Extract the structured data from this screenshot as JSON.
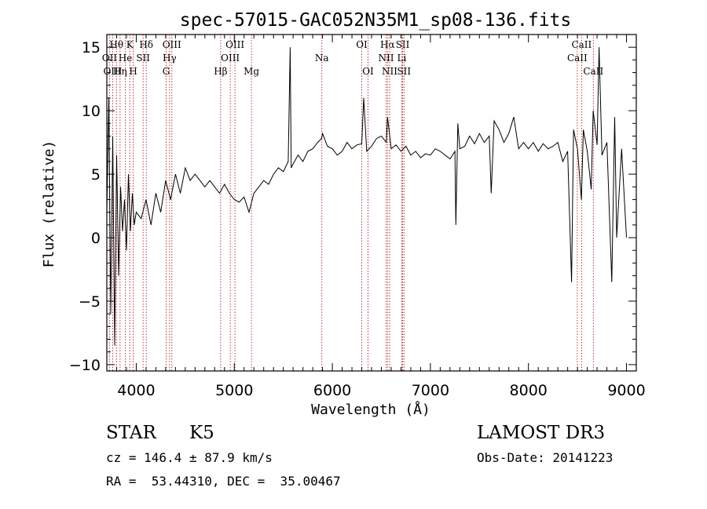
{
  "chart_data": {
    "type": "line",
    "title": "spec-57015-GAC052N35M1_sp08-136.fits",
    "xlabel": "Wavelength (Å)",
    "ylabel": "Flux (relative)",
    "xlim": [
      3700,
      9100
    ],
    "ylim": [
      -10.5,
      16
    ],
    "xticks": [
      4000,
      5000,
      6000,
      7000,
      8000,
      9000
    ],
    "xtick_labels": [
      "4000",
      "5000",
      "6000",
      "7000",
      "8000",
      "9000"
    ],
    "yticks": [
      -10,
      -5,
      0,
      5,
      10,
      15
    ],
    "ytick_labels": [
      "−10",
      "−5",
      "0",
      "5",
      "10",
      "15"
    ],
    "grid": false,
    "series": [
      {
        "name": "flux",
        "x": [
          3700,
          3720,
          3740,
          3760,
          3780,
          3800,
          3820,
          3840,
          3860,
          3880,
          3900,
          3920,
          3940,
          3960,
          3980,
          4000,
          4050,
          4100,
          4150,
          4200,
          4250,
          4300,
          4350,
          4400,
          4450,
          4500,
          4550,
          4600,
          4650,
          4700,
          4750,
          4800,
          4850,
          4900,
          4950,
          5000,
          5050,
          5100,
          5150,
          5200,
          5250,
          5300,
          5350,
          5400,
          5450,
          5500,
          5550,
          5570,
          5580,
          5600,
          5650,
          5700,
          5750,
          5800,
          5850,
          5890,
          5900,
          5950,
          6000,
          6050,
          6100,
          6150,
          6200,
          6250,
          6300,
          6320,
          6350,
          6400,
          6450,
          6500,
          6550,
          6563,
          6600,
          6650,
          6700,
          6750,
          6800,
          6850,
          6900,
          6950,
          7000,
          7050,
          7100,
          7150,
          7200,
          7250,
          7260,
          7280,
          7300,
          7350,
          7400,
          7450,
          7500,
          7550,
          7600,
          7620,
          7650,
          7700,
          7750,
          7800,
          7850,
          7900,
          7950,
          8000,
          8050,
          8100,
          8150,
          8200,
          8250,
          8300,
          8350,
          8400,
          8440,
          8460,
          8500,
          8540,
          8560,
          8600,
          8640,
          8660,
          8700,
          8720,
          8750,
          8800,
          8850,
          8880,
          8900,
          8950,
          9000
        ],
        "y": [
          2,
          11,
          -6,
          8,
          -8.5,
          6.5,
          -3,
          4,
          0.5,
          3,
          -1,
          5,
          0.5,
          3.5,
          1,
          2,
          1.5,
          3,
          1,
          3.5,
          2,
          4.5,
          3,
          5,
          3.5,
          5.5,
          4.5,
          5,
          4.5,
          4,
          4.5,
          4,
          3.5,
          4.2,
          3.5,
          3,
          2.8,
          3.2,
          2,
          3.5,
          4,
          4.5,
          4.2,
          5,
          5.5,
          5.2,
          6,
          15,
          5.5,
          5.8,
          6.5,
          6,
          6.8,
          7,
          7.5,
          7.8,
          8.2,
          7.2,
          7,
          6.5,
          6.8,
          7.5,
          7,
          7.3,
          7.4,
          11,
          6.8,
          7.2,
          7.8,
          8,
          7.5,
          9.5,
          7,
          7.3,
          6.8,
          7.2,
          6.5,
          6.8,
          6.3,
          6.6,
          6.5,
          7,
          6.8,
          6.5,
          6.2,
          6.8,
          1,
          9,
          7,
          7.2,
          8,
          7.4,
          8.2,
          7.5,
          8,
          3.5,
          9.2,
          8.5,
          7.5,
          8.2,
          9.5,
          7,
          7.5,
          7,
          7.5,
          6.8,
          7.4,
          7,
          7.2,
          7.5,
          6,
          6.8,
          -3.5,
          8.5,
          7,
          3,
          8.5,
          6.8,
          3.8,
          10,
          7.3,
          15,
          6.5,
          7.5,
          -3.5,
          9.5,
          0,
          7,
          0
        ]
      }
    ],
    "line_markers": [
      {
        "label": "Hθ",
        "x": 3798,
        "row": 0
      },
      {
        "label": "OII",
        "x": 3727,
        "row": 1
      },
      {
        "label": "OIII",
        "x": 3760,
        "row": 2
      },
      {
        "label": "Hη",
        "x": 3835,
        "row": 2
      },
      {
        "label": "He",
        "x": 3889,
        "row": 1
      },
      {
        "label": "K",
        "x": 3934,
        "row": 0
      },
      {
        "label": "H",
        "x": 3969,
        "row": 2
      },
      {
        "label": "SII",
        "x": 4070,
        "row": 1
      },
      {
        "label": "Hδ",
        "x": 4102,
        "row": 0
      },
      {
        "label": "OIII",
        "x": 4363,
        "row": 0
      },
      {
        "label": "Hγ",
        "x": 4340,
        "row": 1
      },
      {
        "label": "G",
        "x": 4305,
        "row": 2
      },
      {
        "label": "OIII",
        "x": 5007,
        "row": 0
      },
      {
        "label": "OIII",
        "x": 4959,
        "row": 1
      },
      {
        "label": "Hβ",
        "x": 4861,
        "row": 2
      },
      {
        "label": "Mg",
        "x": 5175,
        "row": 2
      },
      {
        "label": "Na",
        "x": 5893,
        "row": 1
      },
      {
        "label": "OI",
        "x": 6300,
        "row": 0
      },
      {
        "label": "OI",
        "x": 6364,
        "row": 2
      },
      {
        "label": "Hα",
        "x": 6563,
        "row": 0
      },
      {
        "label": "NII",
        "x": 6548,
        "row": 1
      },
      {
        "label": "NII",
        "x": 6584,
        "row": 2
      },
      {
        "label": "SII",
        "x": 6717,
        "row": 0
      },
      {
        "label": "Li",
        "x": 6708,
        "row": 1
      },
      {
        "label": "SII",
        "x": 6731,
        "row": 2
      },
      {
        "label": "CaII",
        "x": 8542,
        "row": 0
      },
      {
        "label": "CaII",
        "x": 8498,
        "row": 1
      },
      {
        "label": "CaII",
        "x": 8662,
        "row": 2
      }
    ]
  },
  "info": {
    "class": "STAR",
    "subclass": "K5",
    "survey": "LAMOST DR3",
    "cz": "cz = 146.4 ± 87.9 km/s",
    "obs_date": "Obs-Date: 20141223",
    "coords": "RA =  53.44310, DEC =  35.00467"
  }
}
